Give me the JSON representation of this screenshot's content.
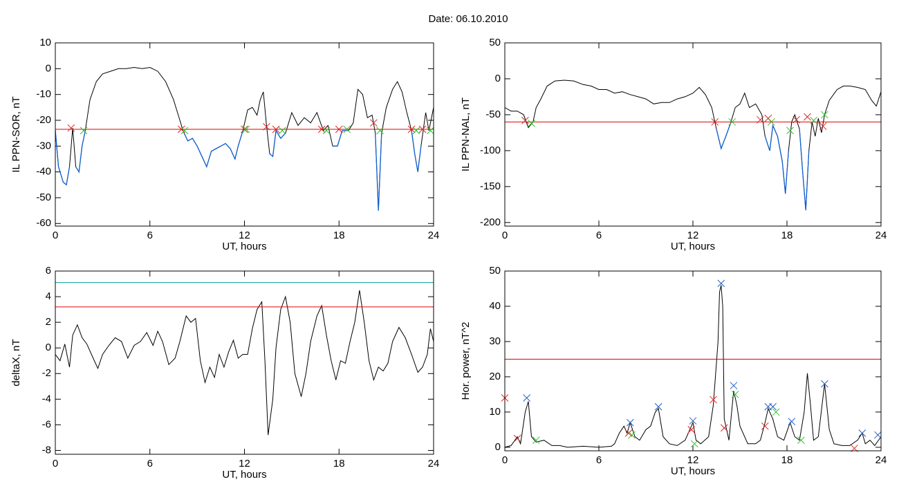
{
  "title": "Date:  06.10.2010",
  "chart_data": [
    {
      "type": "line",
      "ylabel": "IL PPN-SOR, nT",
      "xlabel": "UT, hours",
      "xlim": [
        0,
        24
      ],
      "xticks": [
        0,
        6,
        12,
        18,
        24
      ],
      "ylim": [
        -61,
        10
      ],
      "yticks": [
        10,
        0,
        -10,
        -20,
        -30,
        -40,
        -50,
        -60
      ],
      "color": "#000000",
      "below_color": "#1060d0",
      "hlines": [
        {
          "value": -23.5,
          "color": "#e00000"
        }
      ],
      "x": [
        0,
        0.2,
        0.5,
        0.7,
        0.9,
        1.1,
        1.3,
        1.5,
        1.7,
        1.9,
        2.2,
        2.6,
        3,
        3.5,
        4,
        4.5,
        5,
        5.5,
        6,
        6.5,
        7,
        7.5,
        7.9,
        8.1,
        8.4,
        8.7,
        9,
        9.3,
        9.6,
        9.9,
        10.2,
        10.5,
        10.8,
        11.1,
        11.4,
        11.6,
        11.9,
        12.2,
        12.5,
        12.8,
        13,
        13.2,
        13.4,
        13.6,
        13.8,
        14,
        14.3,
        14.6,
        15,
        15.4,
        15.8,
        16.2,
        16.6,
        17,
        17.3,
        17.6,
        17.9,
        18.2,
        18.6,
        18.9,
        19.2,
        19.5,
        19.8,
        20.1,
        20.3,
        20.5,
        20.7,
        21,
        21.4,
        21.7,
        22,
        22.3,
        22.6,
        22.8,
        23,
        23.2,
        23.5,
        23.7,
        24
      ],
      "values": [
        -24,
        -38,
        -44,
        -45,
        -38,
        -23,
        -38,
        -40,
        -30,
        -24,
        -12,
        -5,
        -2,
        -1,
        0,
        0,
        0.5,
        0,
        0.5,
        -1,
        -5,
        -12,
        -20,
        -24,
        -28,
        -27,
        -30,
        -34,
        -38,
        -32,
        -31,
        -30,
        -29,
        -31,
        -35,
        -30,
        -24,
        -16,
        -15,
        -18,
        -12,
        -9,
        -22,
        -33,
        -34,
        -24,
        -27,
        -25,
        -17,
        -22,
        -19,
        -21,
        -17,
        -24,
        -22,
        -30,
        -30,
        -24,
        -24,
        -21,
        -8,
        -10,
        -19,
        -18,
        -25,
        -55,
        -25,
        -15,
        -8,
        -5,
        -9,
        -17,
        -24,
        -33,
        -40,
        -30,
        -17,
        -24,
        -15
      ],
      "markers": [
        {
          "color": "#e02020",
          "x": [
            1.0,
            8.0,
            12,
            13.4,
            14,
            16.9,
            18,
            20.2,
            22.6,
            23.3
          ],
          "y": [
            -23,
            -23.5,
            -23.5,
            -22.5,
            -23.5,
            -23.5,
            -23.5,
            -21,
            -23.5,
            -23.5
          ]
        },
        {
          "color": "#30c030",
          "x": [
            1.8,
            8.2,
            12.1,
            14.4,
            17.2,
            18.5,
            20.6,
            22.9,
            23.8
          ],
          "y": [
            -24,
            -24,
            -23.5,
            -24,
            -24,
            -23.5,
            -24,
            -24,
            -24
          ]
        }
      ]
    },
    {
      "type": "line",
      "ylabel": "IL PPN-NAL, nT",
      "xlabel": "UT, hours",
      "xlim": [
        0,
        24
      ],
      "xticks": [
        0,
        6,
        12,
        18,
        24
      ],
      "ylim": [
        -205,
        50
      ],
      "yticks": [
        50,
        0,
        -50,
        -100,
        -150,
        -200
      ],
      "color": "#000000",
      "below_color": "#1060d0",
      "hlines": [
        {
          "value": -60,
          "color": "#e00000"
        }
      ],
      "x": [
        0,
        0.4,
        0.8,
        1.2,
        1.5,
        1.8,
        2,
        2.3,
        2.7,
        3.2,
        3.8,
        4.4,
        5,
        5.5,
        6,
        6.5,
        7,
        7.5,
        8,
        8.5,
        9,
        9.5,
        10,
        10.5,
        11,
        11.5,
        12,
        12.4,
        12.8,
        13.2,
        13.5,
        13.8,
        14.1,
        14.4,
        14.7,
        15,
        15.3,
        15.6,
        16,
        16.4,
        16.6,
        16.9,
        17.1,
        17.4,
        17.7,
        17.9,
        18.1,
        18.3,
        18.5,
        18.8,
        19,
        19.2,
        19.4,
        19.6,
        19.8,
        20,
        20.2,
        20.4,
        20.7,
        21.2,
        21.6,
        22,
        22.5,
        23,
        23.4,
        23.7,
        24
      ],
      "values": [
        -40,
        -45,
        -45,
        -50,
        -68,
        -60,
        -40,
        -28,
        -10,
        -3,
        -2,
        -3,
        -8,
        -10,
        -15,
        -15,
        -20,
        -18,
        -22,
        -25,
        -28,
        -35,
        -33,
        -33,
        -28,
        -25,
        -20,
        -12,
        -22,
        -40,
        -70,
        -97,
        -80,
        -62,
        -40,
        -35,
        -20,
        -40,
        -35,
        -50,
        -80,
        -100,
        -65,
        -80,
        -115,
        -160,
        -100,
        -60,
        -50,
        -70,
        -130,
        -183,
        -100,
        -60,
        -80,
        -55,
        -75,
        -50,
        -30,
        -15,
        -10,
        -10,
        -12,
        -15,
        -30,
        -38,
        -18
      ],
      "markers": [
        {
          "color": "#e02020",
          "x": [
            1.3,
            13.4,
            16.3,
            16.8,
            18.6,
            19.3,
            20.3
          ],
          "y": [
            -58,
            -60,
            -57,
            -55,
            -57,
            -53,
            -66
          ]
        },
        {
          "color": "#30c030",
          "x": [
            1.7,
            14.5,
            17,
            18.2,
            19.7,
            20.4
          ],
          "y": [
            -62,
            -60,
            -60,
            -72,
            -58,
            -50
          ]
        }
      ]
    },
    {
      "type": "line",
      "ylabel": "deltaX, nT",
      "xlabel": "UT, hours",
      "xlim": [
        0,
        24
      ],
      "xticks": [
        0,
        6,
        12,
        18,
        24
      ],
      "ylim": [
        -8.3,
        6
      ],
      "yticks": [
        6,
        4,
        2,
        0,
        -2,
        -4,
        -6,
        -8
      ],
      "color": "#000000",
      "hlines": [
        {
          "value": 5.1,
          "color": "#00a0a0"
        },
        {
          "value": 3.2,
          "color": "#e00000"
        }
      ],
      "x": [
        0,
        0.3,
        0.6,
        0.9,
        1.1,
        1.4,
        1.7,
        2,
        2.4,
        2.7,
        3,
        3.4,
        3.8,
        4.2,
        4.6,
        5,
        5.4,
        5.8,
        6.2,
        6.5,
        6.8,
        7.2,
        7.6,
        7.9,
        8.3,
        8.6,
        8.9,
        9.2,
        9.5,
        9.8,
        10.1,
        10.4,
        10.7,
        11,
        11.3,
        11.6,
        11.9,
        12.2,
        12.5,
        12.8,
        13.1,
        13.3,
        13.5,
        13.8,
        14,
        14.3,
        14.6,
        14.9,
        15.2,
        15.6,
        15.9,
        16.2,
        16.6,
        16.9,
        17.2,
        17.5,
        17.8,
        18.1,
        18.4,
        18.7,
        19,
        19.3,
        19.6,
        19.9,
        20.2,
        20.5,
        20.8,
        21.1,
        21.4,
        21.8,
        22.2,
        22.6,
        23,
        23.3,
        23.6,
        23.8,
        24
      ],
      "values": [
        -0.5,
        -1,
        0.3,
        -1.5,
        1,
        1.8,
        0.8,
        0.3,
        -0.8,
        -1.6,
        -0.5,
        0.2,
        0.8,
        0.5,
        -0.8,
        0.2,
        0.5,
        1.2,
        0.2,
        1.3,
        0.5,
        -1.3,
        -0.8,
        0.5,
        2.5,
        2,
        2.3,
        -1,
        -2.7,
        -1.5,
        -2.3,
        -0.5,
        -1.5,
        -0.3,
        0.6,
        -0.8,
        -0.5,
        -0.5,
        1.5,
        3,
        3.6,
        -1,
        -6.8,
        -4,
        0,
        3,
        4,
        2,
        -2,
        -3.8,
        -2,
        0.5,
        2.5,
        3.3,
        1,
        -1,
        -2.5,
        -1,
        -1.2,
        0.5,
        2,
        4.5,
        2,
        -1,
        -2.5,
        -1.5,
        -1.8,
        -1.2,
        0.5,
        1.6,
        0.8,
        -0.5,
        -1.9,
        -1.5,
        -0.5,
        1.5,
        0.5
      ]
    },
    {
      "type": "line",
      "ylabel": "Hor. power, nT^2",
      "xlabel": "UT, hours",
      "xlim": [
        0,
        24
      ],
      "xticks": [
        0,
        6,
        12,
        18,
        24
      ],
      "ylim": [
        -1,
        50
      ],
      "yticks": [
        50,
        40,
        30,
        20,
        10,
        0
      ],
      "color": "#000000",
      "hlines": [
        {
          "value": 25,
          "color": "#e00000"
        }
      ],
      "x": [
        0,
        0.4,
        0.8,
        1,
        1.3,
        1.5,
        1.7,
        2,
        2.5,
        3,
        3.5,
        4,
        5,
        6,
        6.8,
        7,
        7.3,
        7.6,
        7.8,
        8,
        8.3,
        8.6,
        9,
        9.3,
        9.6,
        9.8,
        10.1,
        10.5,
        11,
        11.5,
        11.8,
        12,
        12.2,
        12.5,
        13,
        13.3,
        13.6,
        13.7,
        13.8,
        13.9,
        14,
        14.3,
        14.6,
        14.8,
        15,
        15.5,
        16,
        16.3,
        16.6,
        16.8,
        17.1,
        17.4,
        17.8,
        18.2,
        18.5,
        18.8,
        19.1,
        19.3,
        19.5,
        19.7,
        20,
        20.4,
        20.7,
        21,
        21.5,
        22,
        22.5,
        22.8,
        23,
        23.3,
        23.6,
        24
      ],
      "values": [
        0,
        0.5,
        3,
        1,
        10,
        13,
        3,
        1.5,
        2,
        0.5,
        0.5,
        0,
        0.3,
        0,
        0.3,
        1,
        4,
        6,
        4,
        7,
        3,
        2,
        5,
        6,
        10,
        11,
        3,
        1,
        0.5,
        2,
        5,
        7,
        2,
        1,
        3,
        12,
        30,
        44,
        46,
        40,
        8,
        2,
        16,
        12,
        6,
        1,
        1,
        2,
        7,
        11,
        8,
        3,
        2,
        7,
        3,
        2,
        10,
        21,
        12,
        2,
        3,
        18,
        5,
        1,
        0.5,
        0.5,
        2,
        4,
        1,
        2,
        0.5,
        3
      ],
      "markers": [
        {
          "color": "#2060c0",
          "x": [
            1.4,
            8,
            9.8,
            12,
            13.8,
            14.6,
            16.8,
            17.1,
            18.3,
            20.4,
            22.8,
            23.8
          ],
          "y": [
            14,
            7,
            11.5,
            7.5,
            46.5,
            17.5,
            11.5,
            11.5,
            7.3,
            18,
            4,
            3.5
          ]
        },
        {
          "color": "#e02020",
          "x": [
            0,
            0.8,
            7.9,
            11.9,
            13.3,
            14,
            16.6,
            22.3
          ],
          "y": [
            14,
            2.5,
            4,
            5,
            13.5,
            5.5,
            6,
            -0.3
          ]
        },
        {
          "color": "#30c030",
          "x": [
            2,
            8.1,
            12.1,
            14.7,
            17.3,
            18.9
          ],
          "y": [
            2,
            3.5,
            1,
            15,
            10,
            2
          ]
        }
      ]
    }
  ]
}
